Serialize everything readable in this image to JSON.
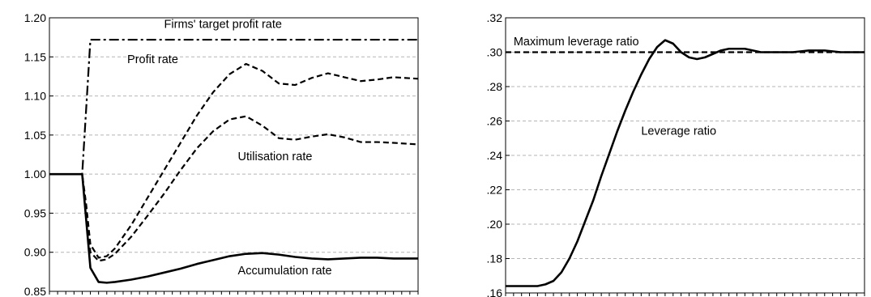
{
  "chart_data": [
    {
      "type": "line",
      "title": "",
      "xlabel": "",
      "ylabel": "",
      "ylim": [
        0.85,
        1.2
      ],
      "y_ticks": [
        "0.85",
        "0.90",
        "0.95",
        "1.00",
        "1.05",
        "1.10",
        "1.15",
        "1.20"
      ],
      "grid": true,
      "x_tick_count": 45,
      "series": [
        {
          "name": "Firms' target profit rate",
          "style": "dashdot",
          "x": [
            0,
            4,
            5,
            45
          ],
          "y": [
            1.0,
            1.0,
            1.172,
            1.172
          ]
        },
        {
          "name": "Profit rate",
          "style": "dashed",
          "x": [
            0,
            4,
            4.5,
            5,
            6,
            7,
            8,
            10,
            12,
            14,
            16,
            18,
            20,
            22,
            24,
            26,
            28,
            30,
            32,
            34,
            36,
            38,
            40,
            42,
            45
          ],
          "y": [
            1.0,
            1.0,
            0.96,
            0.91,
            0.893,
            0.895,
            0.905,
            0.935,
            0.97,
            1.005,
            1.04,
            1.075,
            1.105,
            1.128,
            1.141,
            1.132,
            1.116,
            1.114,
            1.123,
            1.129,
            1.124,
            1.119,
            1.121,
            1.124,
            1.122
          ]
        },
        {
          "name": "Utilisation rate",
          "style": "dashed",
          "x": [
            0,
            4,
            4.5,
            5,
            6,
            7,
            8,
            10,
            12,
            14,
            16,
            18,
            20,
            22,
            24,
            26,
            28,
            30,
            32,
            34,
            36,
            38,
            40,
            42,
            45
          ],
          "y": [
            1.0,
            1.0,
            0.95,
            0.9,
            0.889,
            0.891,
            0.898,
            0.92,
            0.947,
            0.975,
            1.005,
            1.033,
            1.055,
            1.07,
            1.074,
            1.062,
            1.046,
            1.044,
            1.048,
            1.051,
            1.047,
            1.041,
            1.041,
            1.04,
            1.038
          ]
        },
        {
          "name": "Accumulation rate",
          "style": "solid",
          "x": [
            0,
            4,
            4.5,
            5,
            6,
            7,
            8,
            10,
            12,
            14,
            16,
            18,
            20,
            22,
            24,
            26,
            28,
            30,
            32,
            34,
            36,
            38,
            40,
            42,
            45
          ],
          "y": [
            1.0,
            1.0,
            0.94,
            0.88,
            0.862,
            0.861,
            0.862,
            0.865,
            0.869,
            0.874,
            0.879,
            0.885,
            0.89,
            0.895,
            0.898,
            0.899,
            0.897,
            0.894,
            0.892,
            0.891,
            0.892,
            0.893,
            0.893,
            0.892,
            0.892
          ]
        }
      ],
      "annotations": [
        {
          "text": "Firms' target profit rate",
          "x": 14,
          "y": 1.187
        },
        {
          "text": "Profit rate",
          "x": 9.5,
          "y": 1.142
        },
        {
          "text": "Utilisation rate",
          "x": 23,
          "y": 1.018
        },
        {
          "text": "Accumulation rate",
          "x": 23,
          "y": 0.872
        }
      ]
    },
    {
      "type": "line",
      "title": "",
      "xlabel": "",
      "ylabel": "",
      "ylim": [
        0.16,
        0.32
      ],
      "y_ticks": [
        ".16",
        ".18",
        ".20",
        ".22",
        ".24",
        ".26",
        ".28",
        ".30",
        ".32"
      ],
      "grid": true,
      "x_tick_count": 45,
      "series": [
        {
          "name": "Maximum leverage ratio",
          "style": "dashed",
          "x": [
            0,
            45
          ],
          "y": [
            0.3,
            0.3
          ]
        },
        {
          "name": "Leverage ratio",
          "style": "solid",
          "x": [
            0,
            4,
            5,
            6,
            7,
            8,
            9,
            10,
            11,
            12,
            13,
            14,
            15,
            16,
            17,
            18,
            19,
            20,
            21,
            22,
            23,
            24,
            25,
            26,
            27,
            28,
            30,
            32,
            34,
            36,
            38,
            40,
            42,
            45
          ],
          "y": [
            0.164,
            0.164,
            0.165,
            0.167,
            0.172,
            0.18,
            0.19,
            0.202,
            0.214,
            0.228,
            0.241,
            0.254,
            0.266,
            0.277,
            0.287,
            0.296,
            0.303,
            0.307,
            0.305,
            0.3,
            0.297,
            0.296,
            0.297,
            0.299,
            0.301,
            0.302,
            0.302,
            0.3,
            0.3,
            0.3,
            0.301,
            0.301,
            0.3,
            0.3
          ]
        }
      ],
      "annotations": [
        {
          "text": "Maximum leverage ratio",
          "x": 1,
          "y": 0.304
        },
        {
          "text": "Leverage ratio",
          "x": 17,
          "y": 0.252
        }
      ]
    }
  ]
}
